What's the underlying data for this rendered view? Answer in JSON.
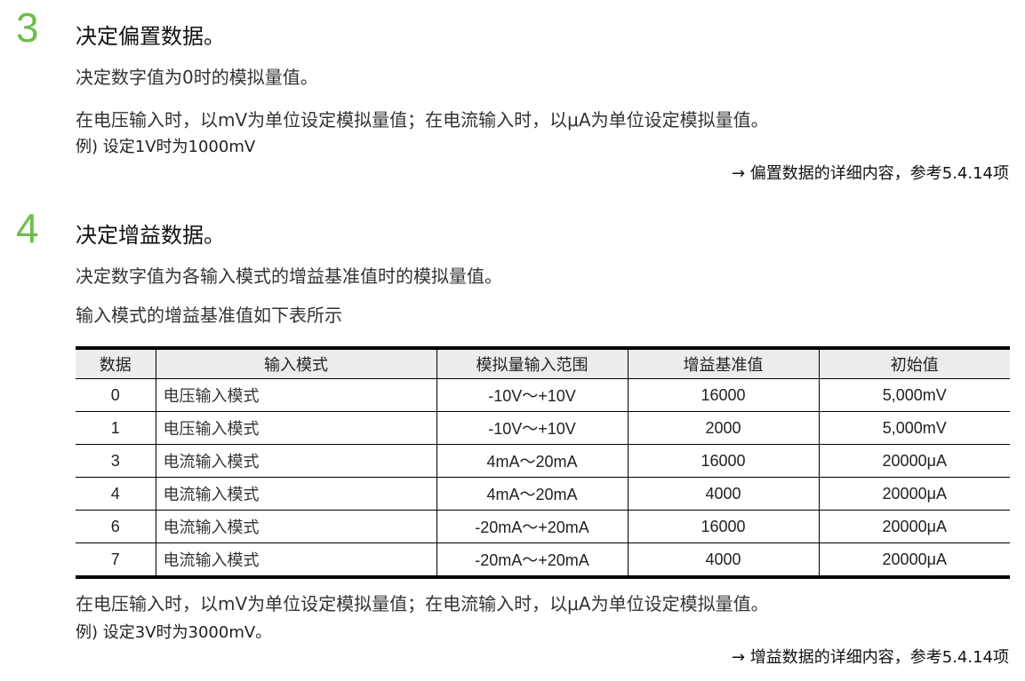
{
  "step3": {
    "number": "3",
    "title": "决定偏置数据。",
    "desc": "决定数字值为0时的模拟量值。",
    "note": "在电压输入时，以mV为单位设定模拟量值；在电流输入时，以μA为单位设定模拟量值。",
    "example": "例) 设定1V时为1000mV",
    "reference": "→ 偏置数据的详细内容，参考5.4.14项"
  },
  "step4": {
    "number": "4",
    "title": "决定增益数据。",
    "desc": "决定数字值为各输入模式的增益基准值时的模拟量值。",
    "table_intro": "输入模式的增益基准值如下表所示",
    "table": {
      "headers": [
        "数据",
        "输入模式",
        "模拟量输入范围",
        "增益基准值",
        "初始值"
      ],
      "rows": [
        [
          "0",
          "电压输入模式",
          "-10V～+10V",
          "16000",
          "5,000mV"
        ],
        [
          "1",
          "电压输入模式",
          "-10V～+10V",
          "2000",
          "5,000mV"
        ],
        [
          "3",
          "电流输入模式",
          "4mA～20mA",
          "16000",
          "20000μA"
        ],
        [
          "4",
          "电流输入模式",
          "4mA～20mA",
          "4000",
          "20000μA"
        ],
        [
          "6",
          "电流输入模式",
          "-20mA～+20mA",
          "16000",
          "20000μA"
        ],
        [
          "7",
          "电流输入模式",
          "-20mA～+20mA",
          "4000",
          "20000μA"
        ]
      ]
    },
    "note": "在电压输入时，以mV为单位设定模拟量值；在电流输入时，以μA为单位设定模拟量值。",
    "example": "例) 设定3V时为3000mV。",
    "reference": "→ 增益数据的详细内容，参考5.4.14项"
  },
  "colors": {
    "step_number": "#6cbf4a"
  }
}
